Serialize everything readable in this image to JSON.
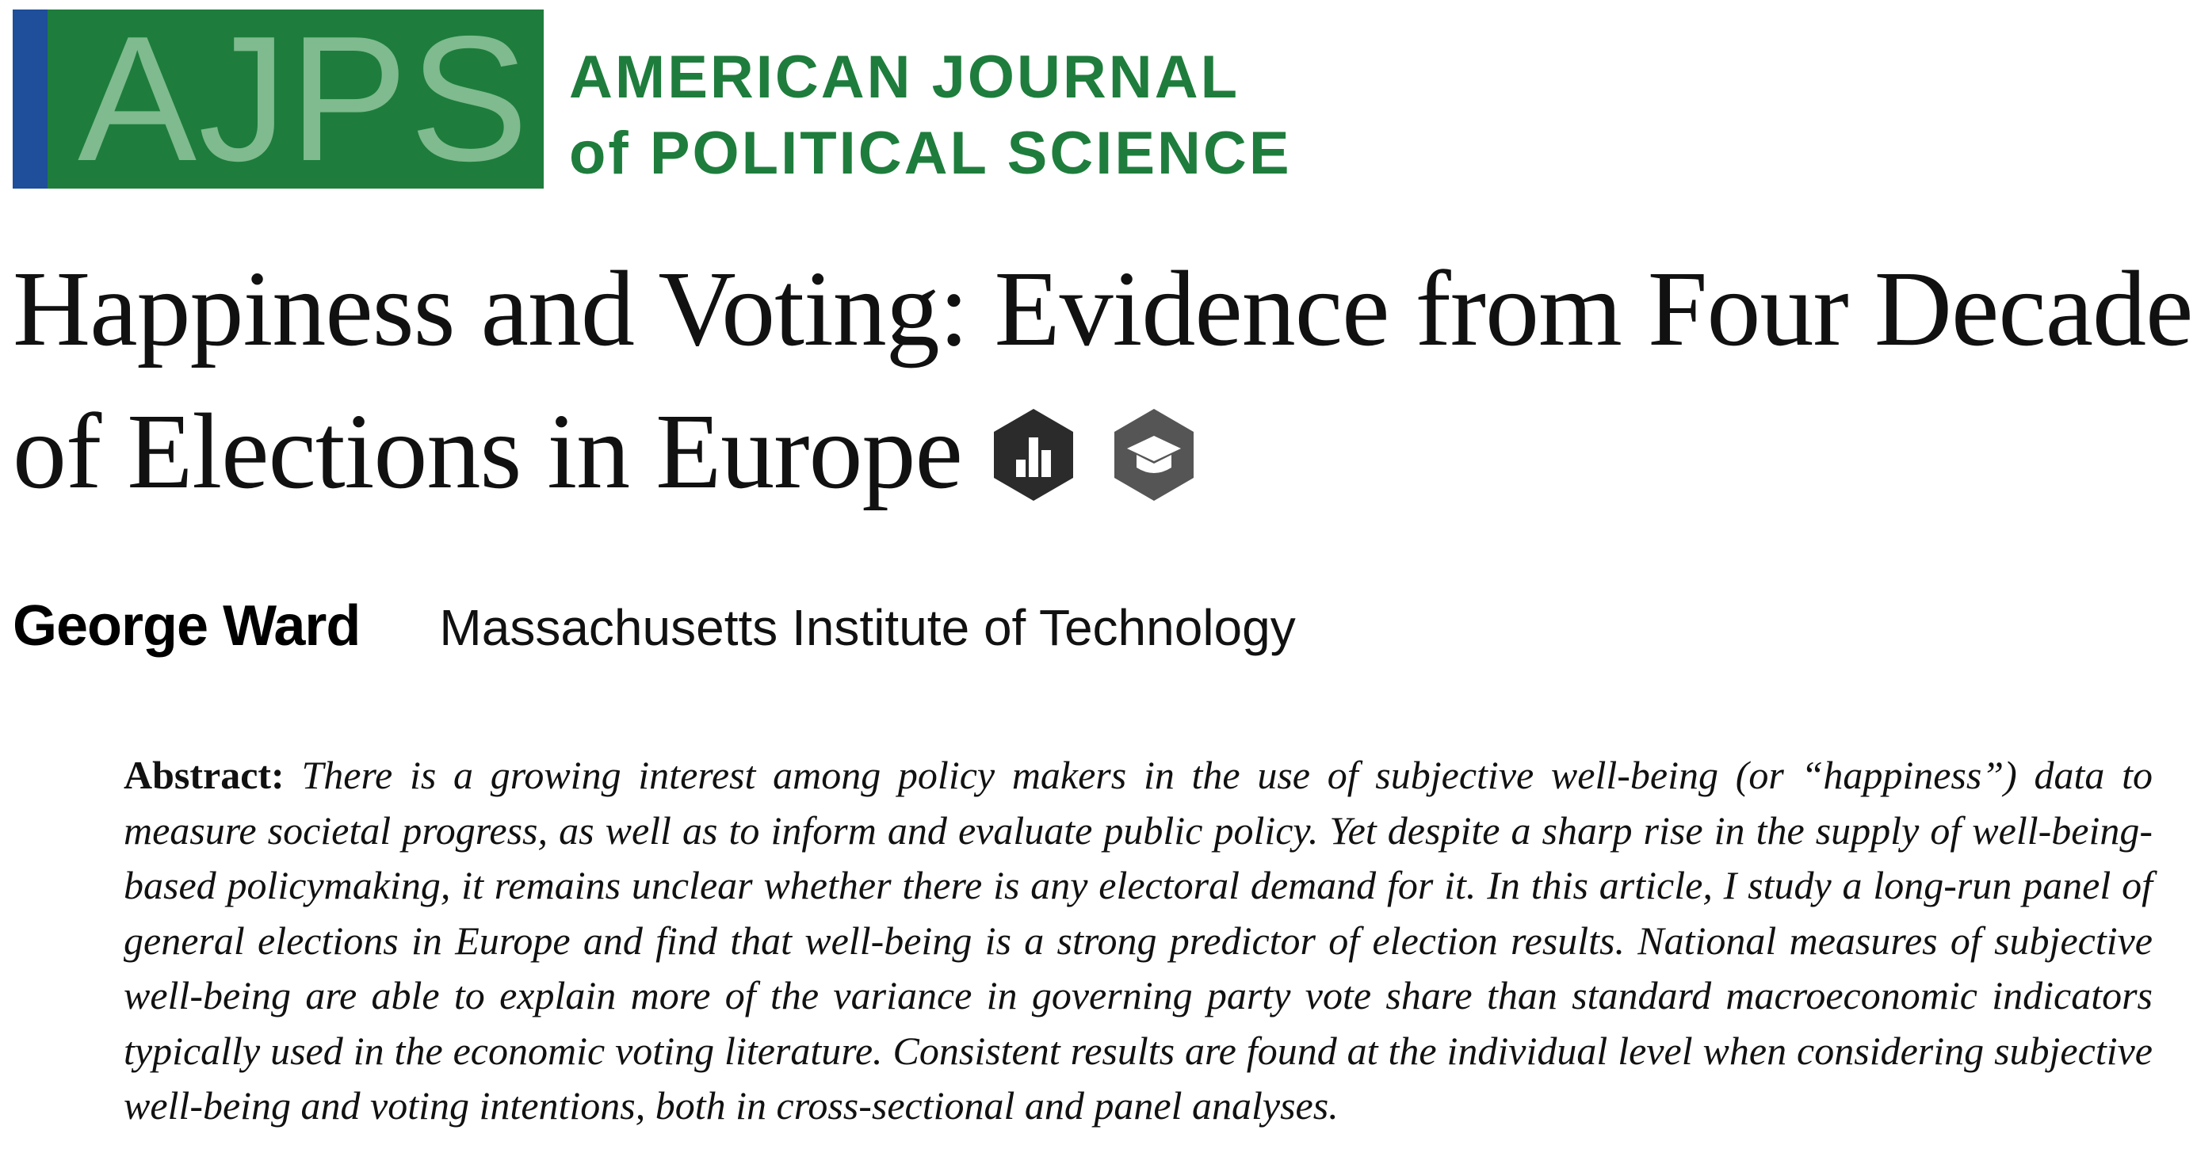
{
  "masthead": {
    "logo_text": "AJPS",
    "journal_name_line1": "AMERICAN JOURNAL",
    "journal_name_line2": "of POLITICAL SCIENCE",
    "brand_green": "#1e7d3c",
    "brand_blue": "#1f4e9a",
    "logo_letter_color": "#7fbb8f"
  },
  "article": {
    "title_line1": "Happiness and Voting: Evidence from Four Decades",
    "title_line2": "of Elections in Europe",
    "badges": [
      {
        "icon": "open-data-badge-icon"
      },
      {
        "icon": "open-materials-badge-icon"
      }
    ],
    "author": "George Ward",
    "affiliation": "Massachusetts Institute of Technology",
    "abstract_label": "Abstract:",
    "abstract_text": "There is a growing interest among policy makers in the use of subjective well-being (or “happiness”) data to measure societal progress, as well as to inform and evaluate public policy. Yet despite a sharp rise in the supply of well-being-based policymaking, it remains unclear whether there is any electoral demand for it. In this article, I study a long-run panel of general elections in Europe and find that well-being is a strong predictor of election results. National measures of subjective well-being are able to explain more of the variance in governing party vote share than standard macroeconomic indicators typically used in the economic voting literature. Consistent results are found at the individual level when considering subjective well-being and voting intentions, both in cross-sectional and panel analyses."
  }
}
